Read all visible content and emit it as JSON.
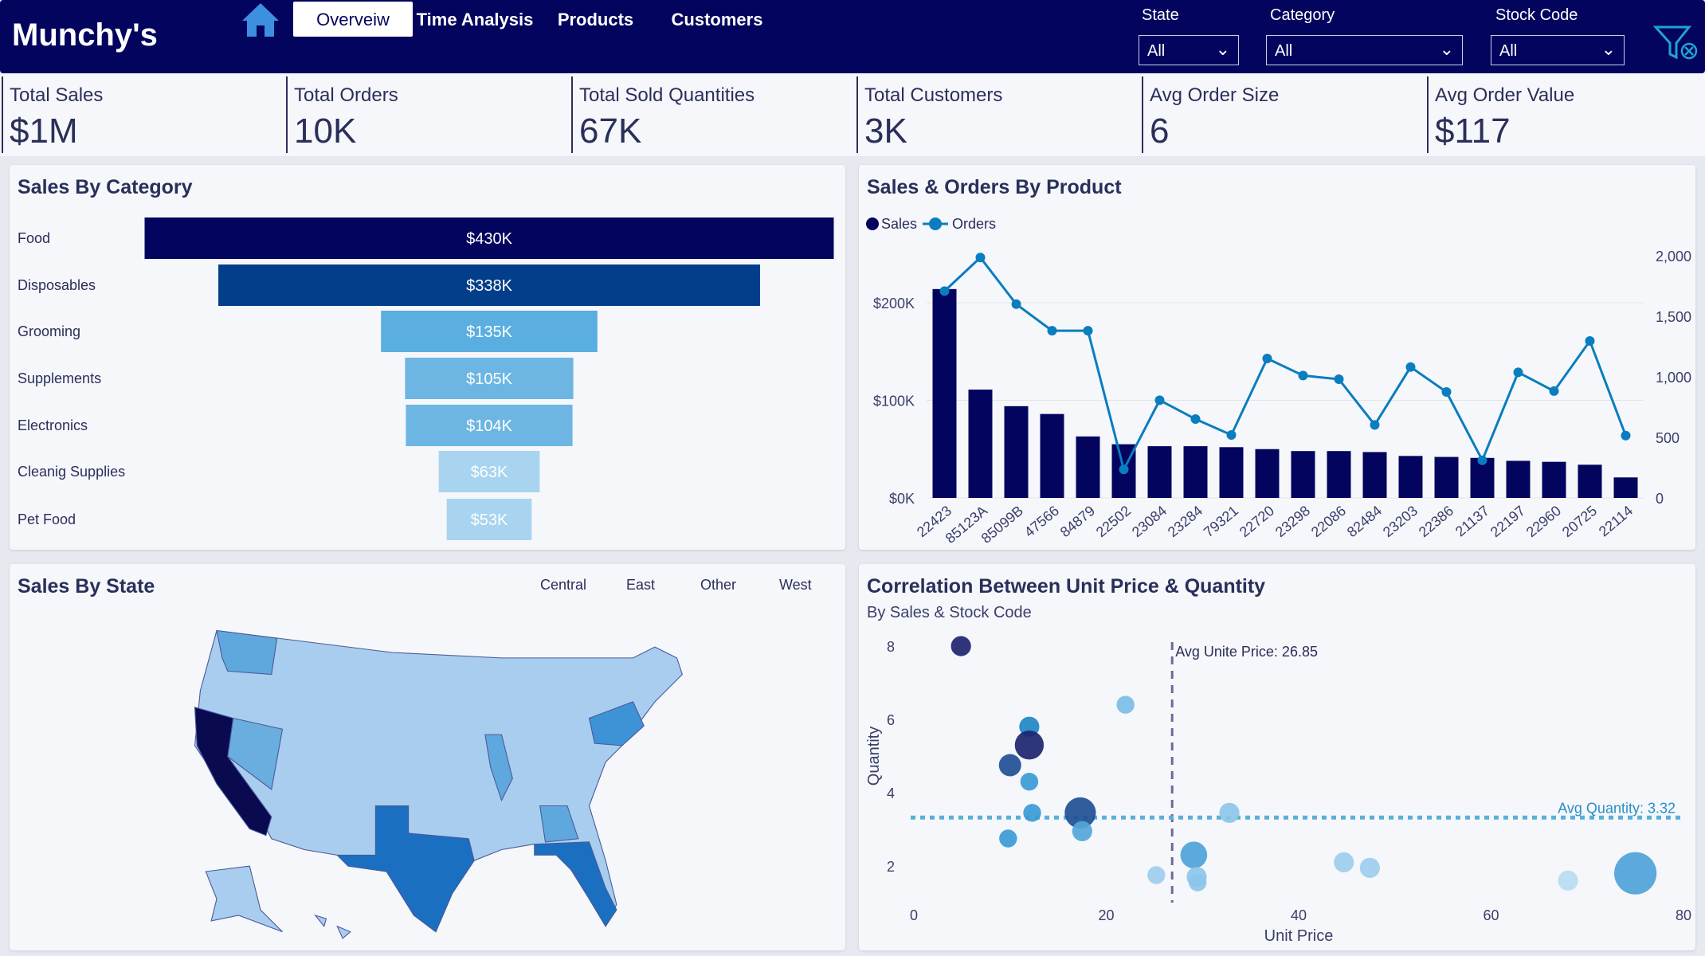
{
  "header": {
    "brand": "Munchy's",
    "tabs": [
      "Overveiw",
      "Time Analysis",
      "Products",
      "Customers"
    ],
    "filters": [
      {
        "label": "State",
        "value": "All"
      },
      {
        "label": "Category",
        "value": "All"
      },
      {
        "label": "Stock Code",
        "value": "All"
      }
    ]
  },
  "kpis": [
    {
      "label": "Total Sales",
      "value": "$1M"
    },
    {
      "label": "Total Orders",
      "value": "10K"
    },
    {
      "label": "Total Sold Quantities",
      "value": "67K"
    },
    {
      "label": "Total Customers",
      "value": "3K"
    },
    {
      "label": "Avg Order Size",
      "value": "6"
    },
    {
      "label": "Avg Order Value",
      "value": "$117"
    }
  ],
  "colors": {
    "navy": "#03045e",
    "dark": "#0d1066",
    "blue": "#023e8a",
    "mid": "#5aaee0",
    "light": "#a8d4ef",
    "line": "#0a7dbf"
  },
  "chart_data": [
    {
      "type": "bar",
      "title": "Sales By Category",
      "categories": [
        "Food",
        "Disposables",
        "Grooming",
        "Supplements",
        "Electronics",
        "Cleanig Supplies",
        "Pet Food"
      ],
      "values": [
        430,
        338,
        135,
        105,
        104,
        63,
        53
      ],
      "labels": [
        "$430K",
        "$338K",
        "$135K",
        "$105K",
        "$104K",
        "$63K",
        "$53K"
      ],
      "unit": "K USD"
    },
    {
      "type": "bar+line",
      "title": "Sales & Orders By Product",
      "legend": [
        "Sales",
        "Orders"
      ],
      "categories": [
        "22423",
        "85123A",
        "85099B",
        "47566",
        "84879",
        "22502",
        "23084",
        "23284",
        "79321",
        "22720",
        "23298",
        "22086",
        "82484",
        "23203",
        "22386",
        "21137",
        "22197",
        "22960",
        "20725",
        "22114"
      ],
      "series": [
        {
          "name": "Sales",
          "values": [
            214,
            111,
            94,
            86,
            63,
            55,
            53,
            53,
            52,
            50,
            48,
            48,
            47,
            43,
            42,
            41,
            38,
            37,
            34,
            21
          ]
        },
        {
          "name": "Orders",
          "values": [
            1708,
            1985,
            1600,
            1381,
            1381,
            235,
            807,
            651,
            520,
            1151,
            1011,
            980,
            603,
            1081,
            875,
            311,
            1037,
            882,
            1296,
            515
          ]
        }
      ],
      "y_ticks": [
        "$0K",
        "$100K",
        "$200K"
      ],
      "y2_ticks": [
        "0",
        "500",
        "1,000",
        "1,500",
        "2,000"
      ],
      "ylim": [
        0,
        250
      ],
      "y2lim": [
        0,
        2200
      ]
    },
    {
      "type": "scatter",
      "title": "Correlation Between Unit Price & Quantity",
      "subtitle": "By Sales & Stock Code",
      "xlabel": "Unit Price",
      "ylabel": "Quantity",
      "x_ticks": [
        "0",
        "20",
        "40",
        "60",
        "80"
      ],
      "y_ticks": [
        "2",
        "4",
        "6",
        "8"
      ],
      "xlim": [
        0,
        80
      ],
      "avg_x_label": "Avg Unite Price: 26.85",
      "avg_x": 26.85,
      "avg_y_label": "Avg Quantity: 3.32",
      "avg_y": 3.32,
      "points": [
        [
          4.9,
          8.0,
          9,
          "#1d2470"
        ],
        [
          22,
          6.4,
          8,
          "#7bbde6"
        ],
        [
          12,
          5.8,
          9,
          "#1f86c6"
        ],
        [
          12,
          5.3,
          13,
          "#1d2470"
        ],
        [
          10,
          4.75,
          10,
          "#1f4f95"
        ],
        [
          12,
          4.3,
          8,
          "#3a9ad5"
        ],
        [
          12.3,
          3.45,
          8,
          "#3a9ad5"
        ],
        [
          17.3,
          3.45,
          14,
          "#1f4f95"
        ],
        [
          17.5,
          2.95,
          9,
          "#52a6da"
        ],
        [
          9.8,
          2.75,
          8,
          "#3a9ad5"
        ],
        [
          32.8,
          3.45,
          9,
          "#8cc5ea"
        ],
        [
          25.2,
          1.75,
          8,
          "#9dcdee"
        ],
        [
          29.1,
          2.3,
          12,
          "#4ea2d8"
        ],
        [
          29.4,
          1.7,
          9,
          "#8cc5ea"
        ],
        [
          29.5,
          1.55,
          8,
          "#8cc5ea"
        ],
        [
          44.7,
          2.1,
          9,
          "#9dcdee"
        ],
        [
          47.4,
          1.95,
          9,
          "#9dcdee"
        ],
        [
          68,
          1.6,
          9,
          "#b7dbf2"
        ],
        [
          75,
          1.8,
          19,
          "#4ea2d8"
        ]
      ]
    }
  ],
  "map": {
    "title": "Sales By State",
    "legend": [
      "Central",
      "East",
      "Other",
      "West"
    ]
  }
}
